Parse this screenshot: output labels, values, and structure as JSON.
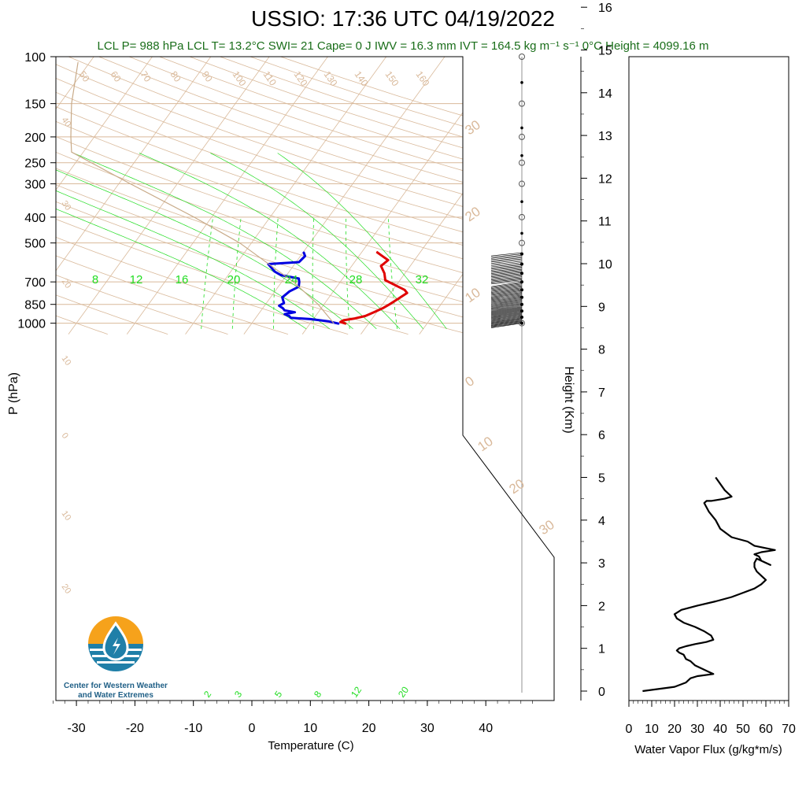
{
  "title": "USSIO: 17:36 UTC 04/19/2022",
  "subtitle": "LCL P= 988 hPa  LCL T= 13.2°C  SWI= 21  Cape= 0 J  IWV = 16.3 mm  IVT = 164.5 kg m⁻¹ s⁻¹  0°C Height = 4099.16 m",
  "logo": {
    "line1": "Center for Western Weather",
    "line2": "and Water Extremes"
  },
  "colors": {
    "temperature": "#e00000",
    "dewpoint": "#0000e0",
    "skew_lines": "#d9b99a",
    "mixing": "#22dd22",
    "subtitle": "#1a6e1a"
  },
  "chart_data": [
    {
      "type": "line",
      "subtype": "skew-t",
      "xlabel": "Temperature (C)",
      "ylabel": "P (hPa)",
      "xlim": [
        -34,
        48
      ],
      "ylim": [
        1050,
        100
      ],
      "y_scale": "log",
      "x_ticks": [
        -30,
        -20,
        -10,
        0,
        10,
        20,
        30,
        40
      ],
      "y_ticks": [
        100,
        150,
        200,
        250,
        300,
        400,
        500,
        700,
        850,
        1000
      ],
      "isotherm_labels": [
        "30",
        "20",
        "10",
        "0",
        "10",
        "20",
        "30"
      ],
      "dry_adiabat_labels": [
        "50",
        "60",
        "70",
        "80",
        "90",
        "100",
        "110",
        "120",
        "130",
        "140",
        "150",
        "160"
      ],
      "dry_adiabat_left_labels": [
        "40",
        "30",
        "20",
        "10",
        "0",
        "10",
        "20"
      ],
      "mixing_ratio_top_labels": [
        "8",
        "12",
        "16",
        "20",
        "24",
        "28",
        "32"
      ],
      "mixing_ratio_bottom_labels": [
        "2",
        "3",
        "5",
        "8",
        "12",
        "20"
      ],
      "series": [
        {
          "name": "",
          "color": "#e00000",
          "points": [
            {
              "p": 1005,
              "t": 16.2
            },
            {
              "p": 990,
              "t": 15.0
            },
            {
              "p": 975,
              "t": 15.3
            },
            {
              "p": 960,
              "t": 17.0
            },
            {
              "p": 940,
              "t": 18.5
            },
            {
              "p": 910,
              "t": 19.5
            },
            {
              "p": 880,
              "t": 20.5
            },
            {
              "p": 850,
              "t": 21.2
            },
            {
              "p": 810,
              "t": 22.0
            },
            {
              "p": 770,
              "t": 22.8
            },
            {
              "p": 750,
              "t": 22.0
            },
            {
              "p": 720,
              "t": 19.8
            },
            {
              "p": 690,
              "t": 17.5
            },
            {
              "p": 650,
              "t": 16.5
            },
            {
              "p": 610,
              "t": 15.0
            },
            {
              "p": 580,
              "t": 15.5
            },
            {
              "p": 560,
              "t": 14.0
            },
            {
              "p": 540,
              "t": 12.5
            }
          ]
        },
        {
          "name": "",
          "color": "#0000e0",
          "points": [
            {
              "p": 1005,
              "t": 15.0
            },
            {
              "p": 985,
              "t": 13.0
            },
            {
              "p": 965,
              "t": 9.5
            },
            {
              "p": 955,
              "t": 6.0
            },
            {
              "p": 940,
              "t": 5.5
            },
            {
              "p": 925,
              "t": 4.5
            },
            {
              "p": 910,
              "t": 6.0
            },
            {
              "p": 895,
              "t": 4.0
            },
            {
              "p": 880,
              "t": 3.5
            },
            {
              "p": 860,
              "t": 2.5
            },
            {
              "p": 840,
              "t": 3.0
            },
            {
              "p": 800,
              "t": 2.0
            },
            {
              "p": 760,
              "t": 2.5
            },
            {
              "p": 730,
              "t": 3.5
            },
            {
              "p": 700,
              "t": 3.0
            },
            {
              "p": 680,
              "t": 2.5
            },
            {
              "p": 660,
              "t": -1.0
            },
            {
              "p": 640,
              "t": -2.5
            },
            {
              "p": 620,
              "t": -3.5
            },
            {
              "p": 600,
              "t": -4.5
            },
            {
              "p": 590,
              "t": 0.5
            },
            {
              "p": 560,
              "t": 0.8
            },
            {
              "p": 540,
              "t": 0.0
            }
          ]
        },
        {
          "name": "",
          "color": "#c8aa88",
          "points": [
            {
              "p": 1000,
              "t": 14.0
            },
            {
              "p": 850,
              "t": 9.0
            },
            {
              "p": 700,
              "t": 2.0
            },
            {
              "p": 500,
              "t": -12.0
            },
            {
              "p": 400,
              "t": -23.0
            },
            {
              "p": 300,
              "t": -38.0
            },
            {
              "p": 228,
              "t": -52.0
            },
            {
              "p": 200,
              "t": -54.0
            },
            {
              "p": 150,
              "t": -58.0
            },
            {
              "p": 105,
              "t": -62.0
            }
          ]
        }
      ]
    },
    {
      "type": "line",
      "xlabel": "Water Vapor Flux (g/kg*m/s)",
      "ylabel": "Height (Km)",
      "xlim": [
        0,
        70
      ],
      "ylim": [
        0,
        16.4
      ],
      "x_ticks": [
        0,
        10,
        20,
        30,
        40,
        50,
        60,
        70
      ],
      "y_ticks": [
        0,
        1,
        2,
        3,
        4,
        5,
        6,
        7,
        8,
        9,
        10,
        11,
        12,
        13,
        14,
        15,
        16
      ],
      "series": [
        {
          "name": "",
          "x": [
            6,
            20,
            25,
            27,
            30,
            37,
            35,
            31,
            29,
            27,
            25,
            24,
            22,
            21,
            22,
            25,
            29,
            34,
            37,
            36,
            33,
            29,
            24,
            21,
            20,
            23,
            30,
            38,
            45,
            50,
            55,
            58,
            60,
            58,
            56,
            55,
            55,
            56,
            60,
            62,
            58,
            57,
            55,
            58,
            64,
            55,
            52,
            45,
            40,
            38,
            35,
            34,
            33,
            34,
            36,
            42,
            45,
            42,
            38
          ],
          "y": [
            0.0,
            0.1,
            0.2,
            0.3,
            0.35,
            0.4,
            0.45,
            0.55,
            0.6,
            0.7,
            0.75,
            0.85,
            0.9,
            0.95,
            1.0,
            1.05,
            1.1,
            1.15,
            1.2,
            1.3,
            1.4,
            1.5,
            1.6,
            1.7,
            1.8,
            1.9,
            2.0,
            2.1,
            2.2,
            2.3,
            2.4,
            2.5,
            2.6,
            2.7,
            2.8,
            2.9,
            3.0,
            3.1,
            3.0,
            2.95,
            3.05,
            3.15,
            3.2,
            3.25,
            3.3,
            3.4,
            3.5,
            3.6,
            3.8,
            4.0,
            4.2,
            4.3,
            4.4,
            4.45,
            4.45,
            4.5,
            4.55,
            4.7,
            5.0
          ]
        }
      ]
    }
  ]
}
